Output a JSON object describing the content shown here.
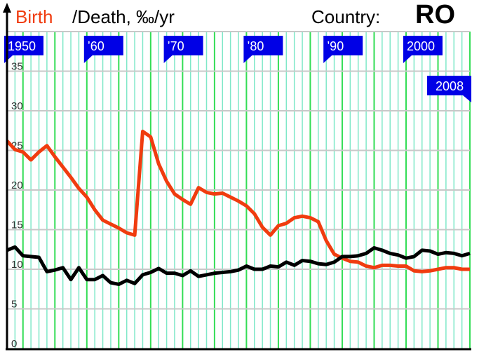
{
  "title": {
    "birth": "Birth",
    "rest": "/Death, ‰/yr",
    "country_label": "Country:",
    "country": "RO"
  },
  "colors": {
    "birth": "#f03c0f",
    "death": "#000000",
    "flag": "#0000e6",
    "grid_minor": "#7fe8c8",
    "grid_major": "#33dd55",
    "grid_h": "#c8c8c8"
  },
  "chart_data": {
    "type": "line",
    "title": "Birth /Death, ‰/yr",
    "xlim": [
      1950,
      2008
    ],
    "ylim": [
      0,
      40
    ],
    "yticks": [
      0,
      5,
      10,
      15,
      20,
      25,
      30,
      35
    ],
    "grid": true,
    "decade_flags": [
      {
        "year": 1950,
        "label": "1950"
      },
      {
        "year": 1960,
        "label": "’60"
      },
      {
        "year": 1970,
        "label": "’70"
      },
      {
        "year": 1980,
        "label": "’80"
      },
      {
        "year": 1990,
        "label": "’90"
      },
      {
        "year": 2000,
        "label": "2000"
      }
    ],
    "end_flag": {
      "year": 2008,
      "label": "2008"
    },
    "x": [
      1950,
      1951,
      1952,
      1953,
      1954,
      1955,
      1956,
      1957,
      1958,
      1959,
      1960,
      1961,
      1962,
      1963,
      1964,
      1965,
      1966,
      1967,
      1968,
      1969,
      1970,
      1971,
      1972,
      1973,
      1974,
      1975,
      1976,
      1977,
      1978,
      1979,
      1980,
      1981,
      1982,
      1983,
      1984,
      1985,
      1986,
      1987,
      1988,
      1989,
      1990,
      1991,
      1992,
      1993,
      1994,
      1995,
      1996,
      1997,
      1998,
      1999,
      2000,
      2001,
      2002,
      2003,
      2004,
      2005,
      2006,
      2007,
      2008
    ],
    "series": [
      {
        "name": "Birth",
        "color": "#f03c0f",
        "values": [
          26.2,
          25.1,
          24.8,
          23.8,
          24.8,
          25.6,
          24.2,
          22.9,
          21.6,
          20.2,
          19.1,
          17.5,
          16.2,
          15.7,
          15.2,
          14.6,
          14.3,
          27.4,
          26.7,
          23.3,
          21.1,
          19.5,
          18.8,
          18.2,
          20.3,
          19.7,
          19.5,
          19.6,
          19.1,
          18.6,
          18.0,
          17.0,
          15.3,
          14.3,
          15.5,
          15.8,
          16.5,
          16.7,
          16.5,
          16.0,
          13.6,
          11.9,
          11.4,
          11.0,
          10.9,
          10.4,
          10.2,
          10.5,
          10.5,
          10.4,
          10.4,
          9.8,
          9.7,
          9.8,
          10.0,
          10.2,
          10.2,
          10.0,
          10.0
        ]
      },
      {
        "name": "Death",
        "color": "#000000",
        "values": [
          12.4,
          12.8,
          11.7,
          11.6,
          11.5,
          9.7,
          9.9,
          10.2,
          8.7,
          10.2,
          8.7,
          8.7,
          9.2,
          8.3,
          8.1,
          8.6,
          8.2,
          9.3,
          9.6,
          10.1,
          9.5,
          9.5,
          9.2,
          9.8,
          9.1,
          9.3,
          9.5,
          9.6,
          9.7,
          9.9,
          10.4,
          10.0,
          10.0,
          10.4,
          10.3,
          10.9,
          10.5,
          11.1,
          11.0,
          10.7,
          10.6,
          10.9,
          11.6,
          11.6,
          11.7,
          12.0,
          12.7,
          12.4,
          12.0,
          11.8,
          11.4,
          11.6,
          12.4,
          12.3,
          11.9,
          12.1,
          12.0,
          11.7,
          12.0
        ]
      }
    ]
  }
}
